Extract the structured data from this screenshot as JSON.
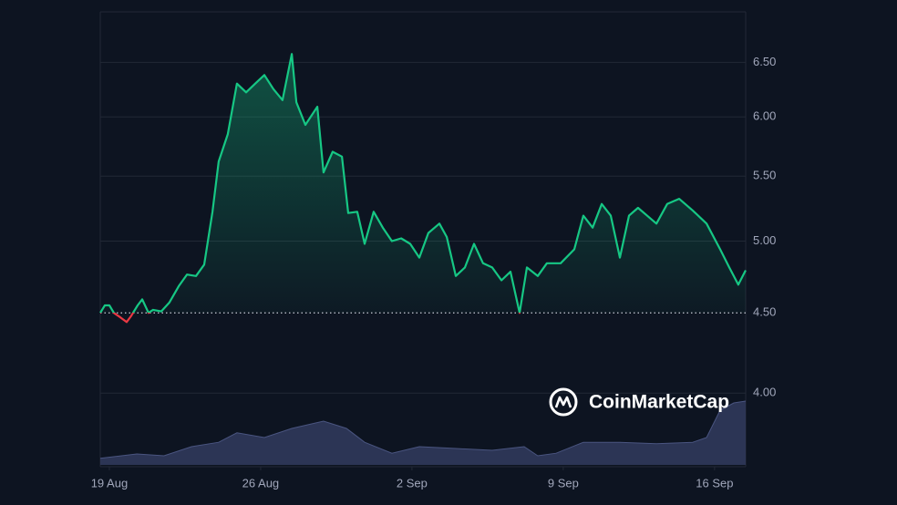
{
  "chart_data": {
    "type": "line",
    "x": [
      -0.42,
      -0.21,
      0,
      0.21,
      0.51,
      0.8,
      1.01,
      1.31,
      1.52,
      1.81,
      2.02,
      2.4,
      2.78,
      3.21,
      3.59,
      4.01,
      4.39,
      4.77,
      5.06,
      5.48,
      5.9,
      6.33,
      6.75,
      7.17,
      7.59,
      8.01,
      8.44,
      8.65,
      9.07,
      9.62,
      9.91,
      10.33,
      10.76,
      11.05,
      11.47,
      11.81,
      12.23,
      12.65,
      13.07,
      13.5,
      13.92,
      14.34,
      14.76,
      15.27,
      15.61,
      16.03,
      16.45,
      16.87,
      17.29,
      17.71,
      18.14,
      18.56,
      18.98,
      19.32,
      19.82,
      20.24,
      20.88,
      21.51,
      21.93,
      22.36,
      22.78,
      23.2,
      23.62,
      24.04,
      24.46,
      24.88,
      25.31,
      25.81,
      26.36,
      26.99,
      27.63,
      28.26,
      28.68,
      29.1,
      29.44
    ],
    "values": [
      4.5,
      4.55,
      4.55,
      4.5,
      4.47,
      4.44,
      4.48,
      4.55,
      4.59,
      4.5,
      4.52,
      4.51,
      4.57,
      4.68,
      4.76,
      4.75,
      4.83,
      5.22,
      5.62,
      5.85,
      6.3,
      6.22,
      6.3,
      6.38,
      6.25,
      6.15,
      6.58,
      6.13,
      5.93,
      6.09,
      5.53,
      5.7,
      5.66,
      5.21,
      5.22,
      4.98,
      5.22,
      5.1,
      5.0,
      5.02,
      4.98,
      4.88,
      5.06,
      5.13,
      5.03,
      4.75,
      4.81,
      4.98,
      4.84,
      4.81,
      4.72,
      4.78,
      4.5,
      4.81,
      4.75,
      4.84,
      4.84,
      4.94,
      5.19,
      5.1,
      5.28,
      5.19,
      4.88,
      5.19,
      5.25,
      5.19,
      5.13,
      5.28,
      5.32,
      5.23,
      5.13,
      4.94,
      4.81,
      4.69,
      4.79
    ],
    "baseline": 4.5,
    "color": "#16c784",
    "below_color": "#ea3943",
    "log_scale": true,
    "xlim": [
      -0.42,
      29.44
    ],
    "ylim": [
      3.6,
      7.0
    ],
    "xticks": [
      {
        "value": 0,
        "label": "19 Aug"
      },
      {
        "value": 7,
        "label": "26 Aug"
      },
      {
        "value": 14,
        "label": "2 Sep"
      },
      {
        "value": 21,
        "label": "9 Sep"
      },
      {
        "value": 28,
        "label": "16 Sep"
      }
    ],
    "yticks": [
      {
        "value": 4.0,
        "label": "4.00"
      },
      {
        "value": 4.5,
        "label": "4.50"
      },
      {
        "value": 5.0,
        "label": "5.00"
      },
      {
        "value": 5.5,
        "label": "5.50"
      },
      {
        "value": 6.0,
        "label": "6.00"
      },
      {
        "value": 6.5,
        "label": "6.50"
      }
    ],
    "grid": true,
    "volume": {
      "axis": "y2",
      "color": "#323b5e",
      "x": [
        -0.42,
        1.27,
        2.53,
        3.8,
        5.06,
        5.9,
        7.17,
        8.44,
        9.91,
        10.97,
        11.81,
        13.07,
        14.34,
        16.03,
        17.71,
        19.19,
        19.82,
        20.67,
        21.93,
        23.62,
        25.31,
        26.99,
        27.63,
        28.26,
        28.89,
        29.44
      ],
      "values": [
        9,
        15,
        12.5,
        25,
        31,
        44,
        37.5,
        50,
        60,
        50,
        31,
        16,
        25,
        22.5,
        20,
        25,
        12.5,
        16,
        31,
        31,
        29,
        31,
        37.5,
        75,
        85,
        87.5
      ]
    },
    "y2lim": [
      0,
      100
    ],
    "watermark": "CoinMarketCap"
  }
}
